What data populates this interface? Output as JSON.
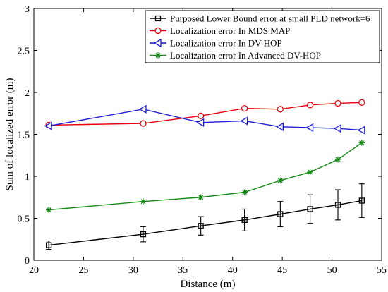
{
  "chart_data": {
    "type": "line",
    "xlabel": "Distance (m)",
    "ylabel": "Sum of localized error (m)",
    "xlim": [
      20,
      55
    ],
    "ylim": [
      0,
      3
    ],
    "xticks": [
      20,
      25,
      30,
      35,
      40,
      45,
      50,
      55
    ],
    "yticks": [
      0,
      0.5,
      1,
      1.5,
      2,
      2.5,
      3
    ],
    "xtick_labels": [
      "20",
      "25",
      "30",
      "35",
      "40",
      "45",
      "50",
      "55"
    ],
    "ytick_labels": [
      "0",
      "0.5",
      "1",
      "1.5",
      "2",
      "2.5",
      "3"
    ],
    "grid": false,
    "legend_position": "top-right",
    "series": [
      {
        "name": "Purposed Lower Bound error at small PLD network=6",
        "color": "#000000",
        "marker": "square",
        "x": [
          21.5,
          31,
          36.8,
          41.2,
          44.8,
          47.8,
          50.6,
          53
        ],
        "y": [
          0.18,
          0.31,
          0.41,
          0.48,
          0.55,
          0.61,
          0.66,
          0.71
        ],
        "error": [
          0.05,
          0.09,
          0.11,
          0.13,
          0.15,
          0.17,
          0.18,
          0.2
        ]
      },
      {
        "name": "Localization error In MDS MAP",
        "color": "#e8000b",
        "marker": "circle",
        "x": [
          21.5,
          31,
          36.8,
          41.2,
          44.8,
          47.8,
          50.6,
          53
        ],
        "y": [
          1.61,
          1.63,
          1.72,
          1.81,
          1.8,
          1.85,
          1.87,
          1.88
        ]
      },
      {
        "name": "Localization error In DV-HOP",
        "color": "#1f1fd6",
        "marker": "triangle-left",
        "x": [
          21.5,
          31,
          36.8,
          41.2,
          44.8,
          47.8,
          50.6,
          53
        ],
        "y": [
          1.6,
          1.8,
          1.64,
          1.66,
          1.59,
          1.58,
          1.57,
          1.55
        ]
      },
      {
        "name": "Localization error In Advanced DV-HOP",
        "color": "#128a12",
        "marker": "asterisk",
        "x": [
          21.5,
          31,
          36.8,
          41.2,
          44.8,
          47.8,
          50.6,
          53
        ],
        "y": [
          0.6,
          0.7,
          0.75,
          0.81,
          0.95,
          1.05,
          1.2,
          1.4
        ]
      }
    ]
  }
}
